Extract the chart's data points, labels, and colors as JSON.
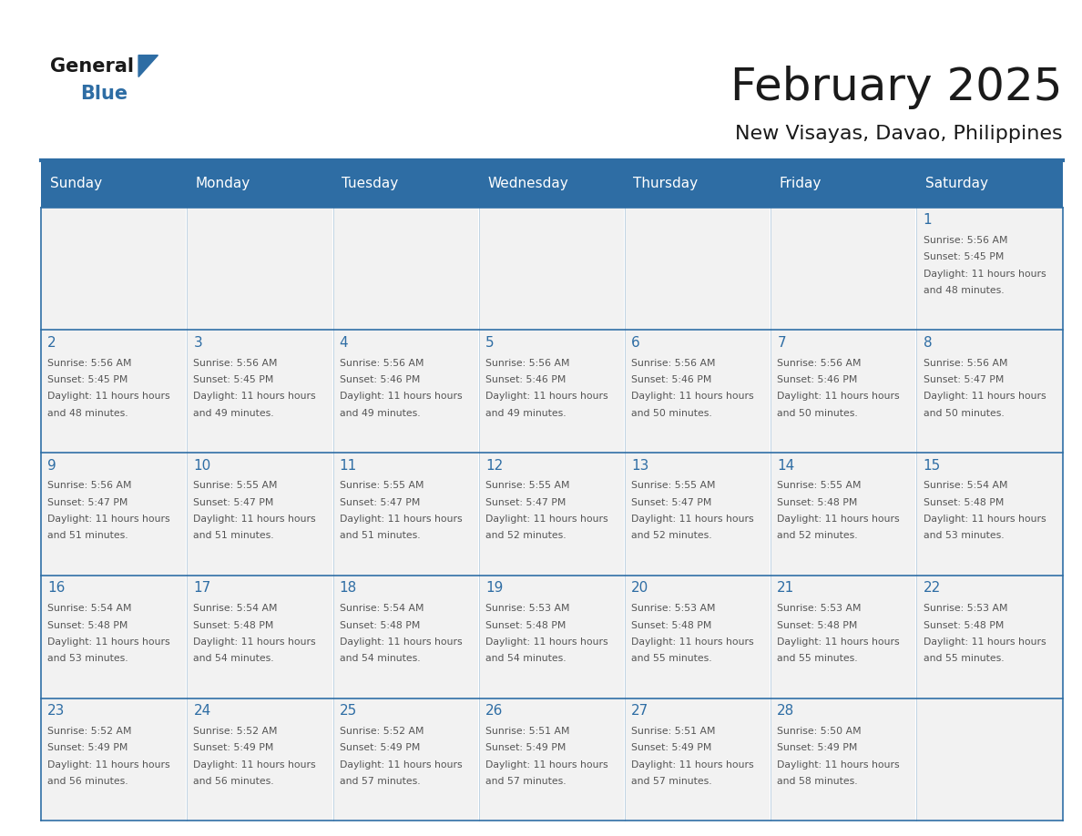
{
  "title": "February 2025",
  "subtitle": "New Visayas, Davao, Philippines",
  "days_of_week": [
    "Sunday",
    "Monday",
    "Tuesday",
    "Wednesday",
    "Thursday",
    "Friday",
    "Saturday"
  ],
  "header_bg_color": "#2E6DA4",
  "header_text_color": "#FFFFFF",
  "cell_bg_color": "#F2F2F2",
  "border_color": "#2E6DA4",
  "day_number_color": "#2E6DA4",
  "text_color": "#555555",
  "title_color": "#1a1a1a",
  "logo_general_color": "#1a1a1a",
  "logo_blue_color": "#2E6DA4",
  "logo_triangle_color": "#2E6DA4",
  "calendar_data": [
    [
      null,
      null,
      null,
      null,
      null,
      null,
      1
    ],
    [
      2,
      3,
      4,
      5,
      6,
      7,
      8
    ],
    [
      9,
      10,
      11,
      12,
      13,
      14,
      15
    ],
    [
      16,
      17,
      18,
      19,
      20,
      21,
      22
    ],
    [
      23,
      24,
      25,
      26,
      27,
      28,
      null
    ]
  ],
  "sun_data": {
    "1": {
      "sunrise": "5:56 AM",
      "sunset": "5:45 PM",
      "daylight": "11 hours and 48 minutes"
    },
    "2": {
      "sunrise": "5:56 AM",
      "sunset": "5:45 PM",
      "daylight": "11 hours and 48 minutes"
    },
    "3": {
      "sunrise": "5:56 AM",
      "sunset": "5:45 PM",
      "daylight": "11 hours and 49 minutes"
    },
    "4": {
      "sunrise": "5:56 AM",
      "sunset": "5:46 PM",
      "daylight": "11 hours and 49 minutes"
    },
    "5": {
      "sunrise": "5:56 AM",
      "sunset": "5:46 PM",
      "daylight": "11 hours and 49 minutes"
    },
    "6": {
      "sunrise": "5:56 AM",
      "sunset": "5:46 PM",
      "daylight": "11 hours and 50 minutes"
    },
    "7": {
      "sunrise": "5:56 AM",
      "sunset": "5:46 PM",
      "daylight": "11 hours and 50 minutes"
    },
    "8": {
      "sunrise": "5:56 AM",
      "sunset": "5:47 PM",
      "daylight": "11 hours and 50 minutes"
    },
    "9": {
      "sunrise": "5:56 AM",
      "sunset": "5:47 PM",
      "daylight": "11 hours and 51 minutes"
    },
    "10": {
      "sunrise": "5:55 AM",
      "sunset": "5:47 PM",
      "daylight": "11 hours and 51 minutes"
    },
    "11": {
      "sunrise": "5:55 AM",
      "sunset": "5:47 PM",
      "daylight": "11 hours and 51 minutes"
    },
    "12": {
      "sunrise": "5:55 AM",
      "sunset": "5:47 PM",
      "daylight": "11 hours and 52 minutes"
    },
    "13": {
      "sunrise": "5:55 AM",
      "sunset": "5:47 PM",
      "daylight": "11 hours and 52 minutes"
    },
    "14": {
      "sunrise": "5:55 AM",
      "sunset": "5:48 PM",
      "daylight": "11 hours and 52 minutes"
    },
    "15": {
      "sunrise": "5:54 AM",
      "sunset": "5:48 PM",
      "daylight": "11 hours and 53 minutes"
    },
    "16": {
      "sunrise": "5:54 AM",
      "sunset": "5:48 PM",
      "daylight": "11 hours and 53 minutes"
    },
    "17": {
      "sunrise": "5:54 AM",
      "sunset": "5:48 PM",
      "daylight": "11 hours and 54 minutes"
    },
    "18": {
      "sunrise": "5:54 AM",
      "sunset": "5:48 PM",
      "daylight": "11 hours and 54 minutes"
    },
    "19": {
      "sunrise": "5:53 AM",
      "sunset": "5:48 PM",
      "daylight": "11 hours and 54 minutes"
    },
    "20": {
      "sunrise": "5:53 AM",
      "sunset": "5:48 PM",
      "daylight": "11 hours and 55 minutes"
    },
    "21": {
      "sunrise": "5:53 AM",
      "sunset": "5:48 PM",
      "daylight": "11 hours and 55 minutes"
    },
    "22": {
      "sunrise": "5:53 AM",
      "sunset": "5:48 PM",
      "daylight": "11 hours and 55 minutes"
    },
    "23": {
      "sunrise": "5:52 AM",
      "sunset": "5:49 PM",
      "daylight": "11 hours and 56 minutes"
    },
    "24": {
      "sunrise": "5:52 AM",
      "sunset": "5:49 PM",
      "daylight": "11 hours and 56 minutes"
    },
    "25": {
      "sunrise": "5:52 AM",
      "sunset": "5:49 PM",
      "daylight": "11 hours and 57 minutes"
    },
    "26": {
      "sunrise": "5:51 AM",
      "sunset": "5:49 PM",
      "daylight": "11 hours and 57 minutes"
    },
    "27": {
      "sunrise": "5:51 AM",
      "sunset": "5:49 PM",
      "daylight": "11 hours and 57 minutes"
    },
    "28": {
      "sunrise": "5:50 AM",
      "sunset": "5:49 PM",
      "daylight": "11 hours and 58 minutes"
    }
  }
}
